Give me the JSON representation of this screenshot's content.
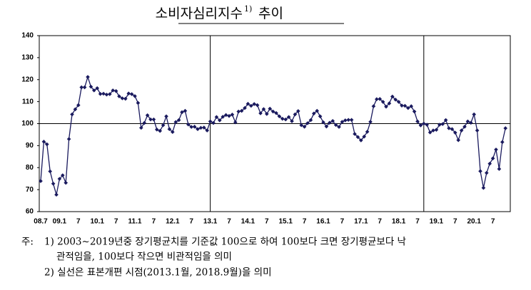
{
  "chart_data": {
    "type": "line",
    "title": "소비자심리지수",
    "title_sup": "1)",
    "title_suffix": "추이",
    "categories": [
      "08.7",
      null,
      null,
      null,
      null,
      null,
      "09.1",
      null,
      null,
      null,
      null,
      null,
      "7",
      null,
      null,
      null,
      null,
      null,
      "10.1",
      null,
      null,
      null,
      null,
      null,
      "7",
      null,
      null,
      null,
      null,
      null,
      "11.1",
      null,
      null,
      null,
      null,
      null,
      "7",
      null,
      null,
      null,
      null,
      null,
      "12.1",
      null,
      null,
      null,
      null,
      null,
      "7",
      null,
      null,
      null,
      null,
      null,
      "13.1",
      null,
      null,
      null,
      null,
      null,
      "7",
      null,
      null,
      null,
      null,
      null,
      "14.1",
      null,
      null,
      null,
      null,
      null,
      "7",
      null,
      null,
      null,
      null,
      null,
      "15.1",
      null,
      null,
      null,
      null,
      null,
      "7",
      null,
      null,
      null,
      null,
      null,
      "16.1",
      null,
      null,
      null,
      null,
      null,
      "7",
      null,
      null,
      null,
      null,
      null,
      "17.1",
      null,
      null,
      null,
      null,
      null,
      "7",
      null,
      null,
      null,
      null,
      null,
      "18.1",
      null,
      null,
      null,
      null,
      null,
      "7",
      null,
      null,
      null,
      null,
      null,
      "19.1",
      null,
      null,
      null,
      null,
      null,
      "7",
      null,
      null,
      null,
      null,
      null,
      "20.1",
      null,
      null,
      null,
      null,
      null,
      "7",
      null,
      null,
      null,
      null
    ],
    "series": [
      {
        "color": "#1a1a5e",
        "values": [
          73.9,
          91.8,
          90.6,
          78.3,
          72.7,
          67.7,
          74.9,
          76.5,
          73.1,
          93.0,
          104.2,
          106.5,
          108.4,
          116.5,
          116.5,
          121.2,
          116.8,
          115.1,
          116.1,
          113.5,
          113.6,
          113.2,
          113.4,
          115.1,
          114.8,
          112.4,
          111.5,
          111.3,
          113.7,
          113.4,
          112.5,
          109.4,
          98.1,
          100.3,
          103.8,
          101.9,
          101.9,
          97.3,
          96.7,
          99.3,
          103.3,
          97.5,
          96.2,
          100.7,
          101.6,
          105.2,
          105.8,
          99.6,
          98.5,
          98.6,
          97.5,
          98.1,
          98.2,
          96.9,
          101.0,
          100.3,
          103.0,
          101.5,
          103.1,
          103.9,
          103.5,
          104.1,
          100.6,
          105.5,
          105.8,
          107.1,
          109.0,
          108.1,
          108.9,
          108.4,
          104.7,
          106.6,
          104.4,
          106.8,
          105.5,
          104.8,
          103.3,
          102.2,
          101.9,
          103.0,
          101.1,
          104.2,
          105.7,
          99.3,
          98.6,
          100.2,
          101.6,
          104.6,
          105.8,
          103.3,
          100.6,
          98.7,
          100.4,
          101.2,
          99.4,
          98.5,
          100.8,
          101.5,
          101.7,
          101.7,
          95.3,
          93.9,
          92.4,
          94.1,
          96.3,
          100.8,
          107.9,
          111.1,
          111.2,
          109.9,
          107.7,
          109.2,
          112.3,
          110.9,
          109.9,
          108.2,
          108.1,
          107.1,
          107.9,
          105.5,
          101.0,
          99.2,
          100.0,
          99.5,
          96.0,
          96.9,
          97.2,
          99.5,
          99.8,
          101.6,
          97.9,
          97.5,
          95.9,
          92.5,
          96.9,
          98.6,
          101.0,
          100.4,
          104.2,
          96.9,
          78.4,
          70.8,
          77.6,
          81.8,
          84.2,
          88.2,
          79.4,
          91.6,
          97.9
        ]
      }
    ],
    "ylim": [
      60,
      140
    ],
    "yticks": [
      60,
      70,
      80,
      90,
      100,
      110,
      120,
      130,
      140
    ],
    "reference_line": 100,
    "vlines": [
      54,
      122
    ],
    "note_label": "주:",
    "notes": [
      "1) 2003∼2019년중 장기평균치를 기준값 100으로 하여 100보다 크면 장기평균보다 낙",
      "관적임을, 100보다 작으면 비관적임을 의미",
      "2) 실선은 표본개편 시점(2013.1월, 2018.9월)을 의미"
    ]
  }
}
